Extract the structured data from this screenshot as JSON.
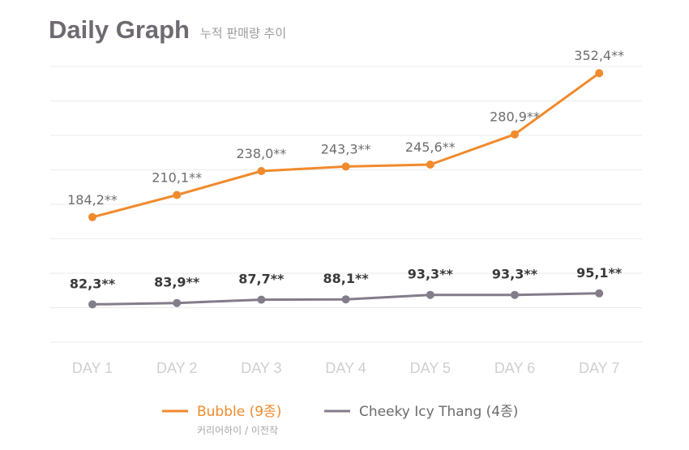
{
  "chart_data": {
    "type": "line",
    "title": "Daily Graph",
    "subtitle": "누적 판매량 추이",
    "categories": [
      "DAY 1",
      "DAY 2",
      "DAY 3",
      "DAY 4",
      "DAY 5",
      "DAY 6",
      "DAY 7"
    ],
    "ylim": [
      40,
      400
    ],
    "grid": true,
    "series": [
      {
        "name": "Bubble (9종)",
        "subtitle": "커리어하이 / 이전작",
        "color": "#f08a2c",
        "values": [
          184.2,
          210.1,
          238.0,
          243.3,
          245.6,
          280.9,
          352.4
        ],
        "labels": [
          "184,2**",
          "210,1**",
          "238,0**",
          "243,3**",
          "245,6**",
          "280,9**",
          "352,4**"
        ]
      },
      {
        "name": "Cheeky Icy Thang (4종)",
        "color": "#847c8a",
        "values": [
          82.3,
          83.9,
          87.7,
          88.1,
          93.3,
          93.3,
          95.1
        ],
        "labels": [
          "82,3**",
          "83,9**",
          "87,7**",
          "88,1**",
          "93,3**",
          "93,3**",
          "95,1**"
        ]
      }
    ],
    "legend_position": "bottom-center"
  }
}
